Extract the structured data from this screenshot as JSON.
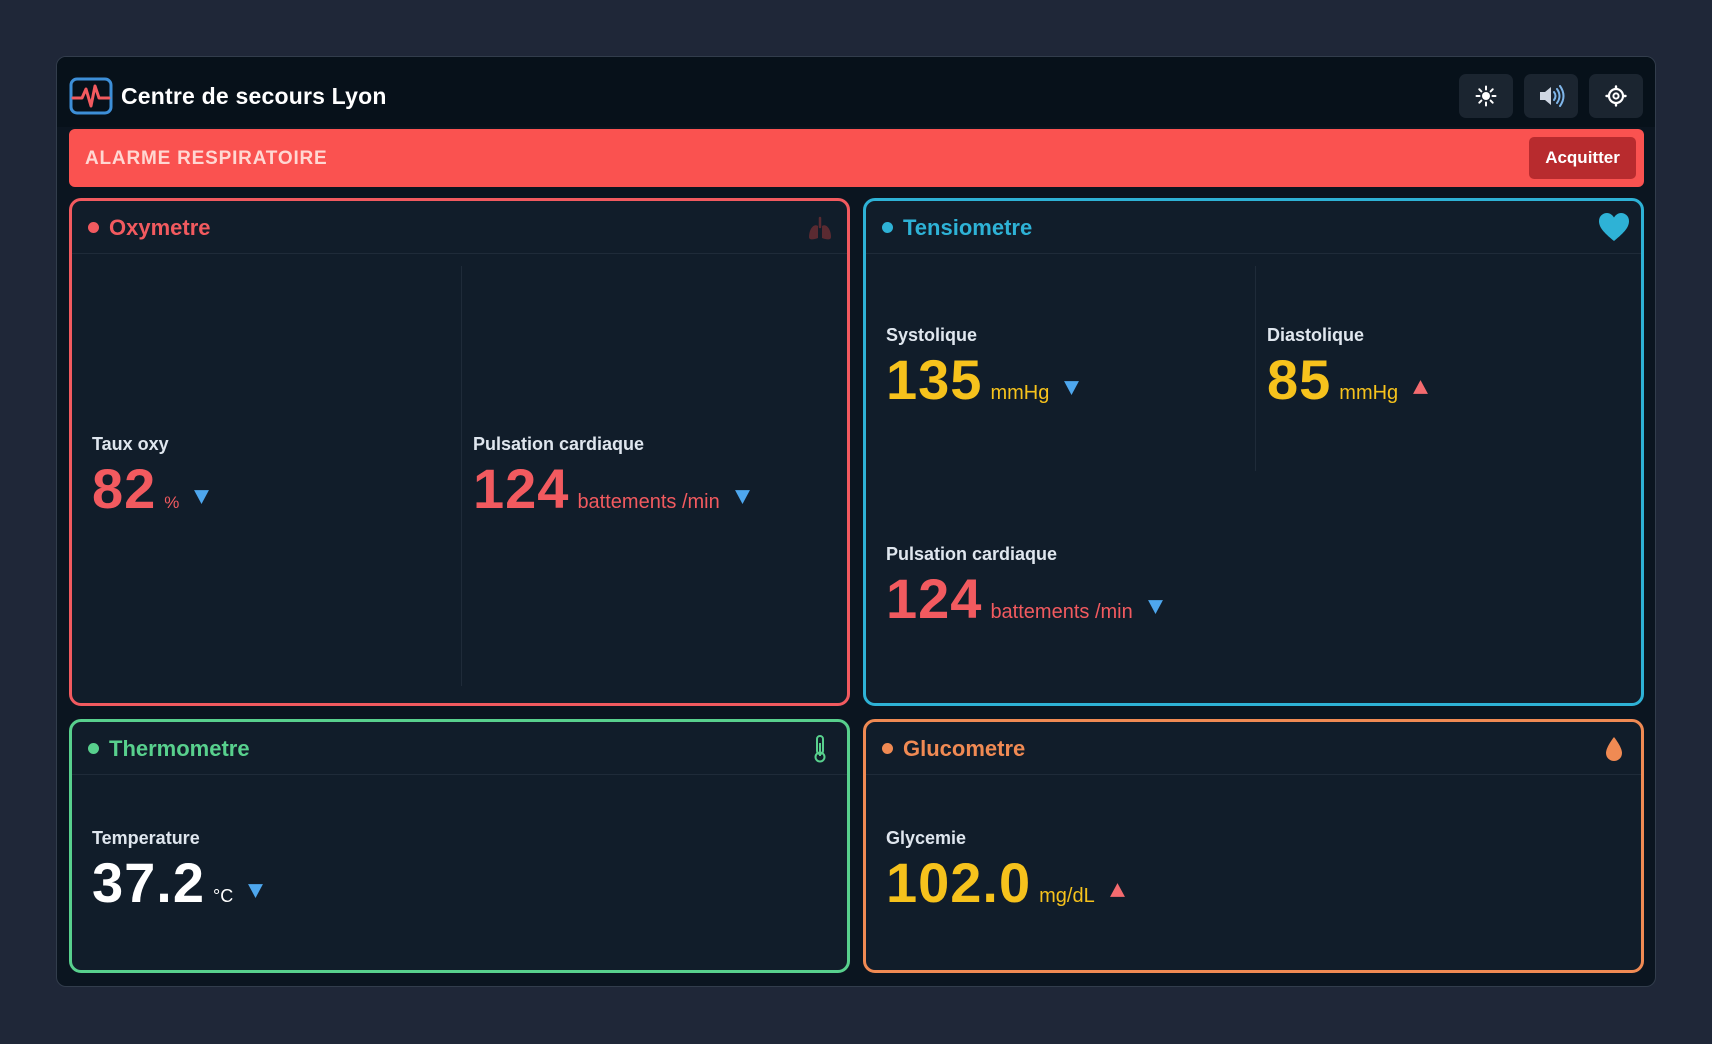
{
  "app": {
    "title": "Centre de secours Lyon"
  },
  "toolbar": {
    "buttons": [
      {
        "name": "brightness-icon"
      },
      {
        "name": "speaker-icon"
      },
      {
        "name": "settings-icon"
      }
    ]
  },
  "alarm": {
    "text": "ALARME RESPIRATOIRE",
    "ack_label": "Acquitter",
    "color": "#fa5250"
  },
  "panels": {
    "oxymetre": {
      "title": "Oxymetre",
      "color": "#f25a5f",
      "icon": "lungs-icon",
      "metrics": [
        {
          "label": "Taux oxy",
          "value": "82",
          "unit": "%",
          "trend": "down"
        },
        {
          "label": "Pulsation cardiaque",
          "value": "124",
          "unit": "battements /min",
          "trend": "down"
        }
      ]
    },
    "tensiometre": {
      "title": "Tensiometre",
      "color": "#2eb2d6",
      "icon": "heart-icon",
      "metrics": [
        {
          "label": "Systolique",
          "value": "135",
          "unit": "mmHg",
          "trend": "down"
        },
        {
          "label": "Diastolique",
          "value": "85",
          "unit": "mmHg",
          "trend": "up"
        },
        {
          "label": "Pulsation cardiaque",
          "value": "124",
          "unit": "battements /min",
          "trend": "down"
        }
      ]
    },
    "thermometre": {
      "title": "Thermometre",
      "color": "#58d08d",
      "icon": "thermometer-icon",
      "metrics": [
        {
          "label": "Temperature",
          "value": "37.2",
          "unit": "°C",
          "trend": "down"
        }
      ]
    },
    "glucometre": {
      "title": "Glucometre",
      "color": "#f08a53",
      "icon": "drop-icon",
      "metrics": [
        {
          "label": "Glycemie",
          "value": "102.0",
          "unit": "mg/dL",
          "trend": "up"
        }
      ]
    }
  },
  "colors": {
    "value_red": "#f25a5f",
    "value_yellow": "#f6c21c",
    "value_white": "#ffffff",
    "trend_down": "#4ea7ee",
    "trend_up": "#f46b6f"
  }
}
